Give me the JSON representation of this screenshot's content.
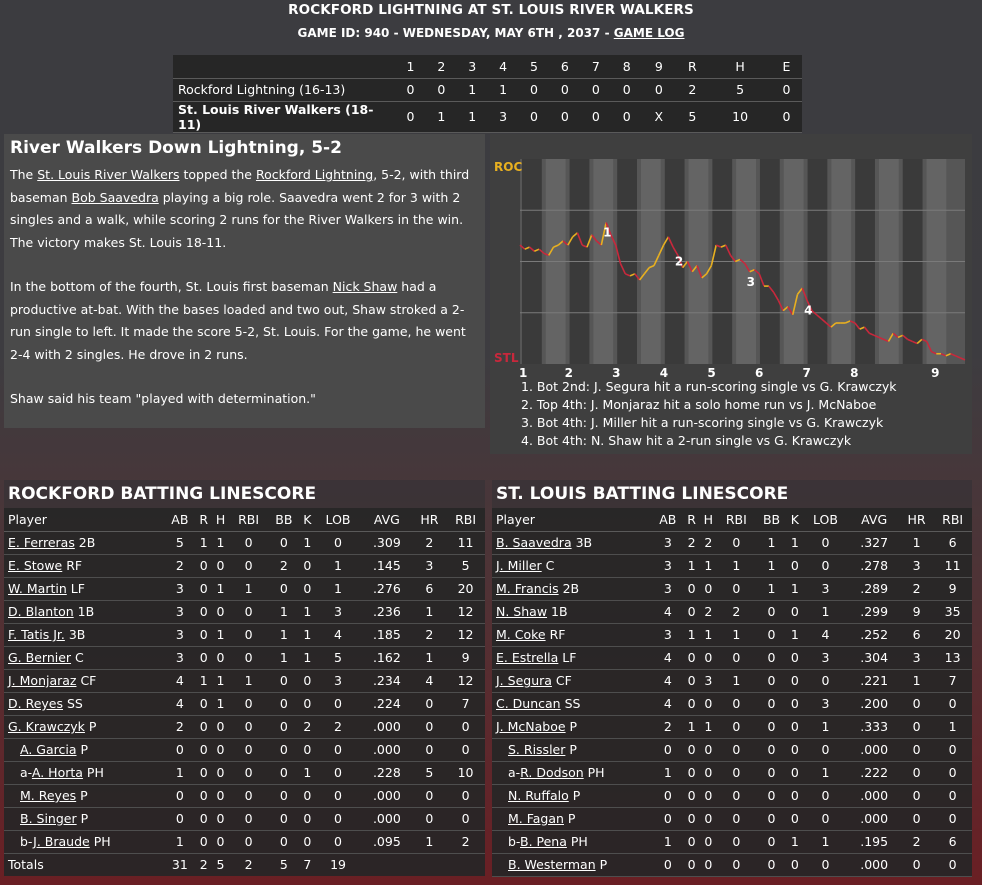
{
  "header": {
    "title": "ROCKFORD LIGHTNING AT ST. LOUIS RIVER WALKERS",
    "subtitle": "GAME ID: 940 - WEDNESDAY, MAY 6TH , 2037 -",
    "game_log_link": "GAME LOG"
  },
  "linescore": {
    "columns": [
      "1",
      "2",
      "3",
      "4",
      "5",
      "6",
      "7",
      "8",
      "9",
      "R",
      "H",
      "E"
    ],
    "teams": [
      {
        "name": "Rockford Lightning (16-13)",
        "cells": [
          "0",
          "0",
          "1",
          "1",
          "0",
          "0",
          "0",
          "0",
          "0",
          "2",
          "5",
          "0"
        ]
      },
      {
        "name": "St. Louis River Walkers (18-11)",
        "cells": [
          "0",
          "1",
          "1",
          "3",
          "0",
          "0",
          "0",
          "0",
          "X",
          "5",
          "10",
          "0"
        ]
      }
    ]
  },
  "story": {
    "headline": "River Walkers Down Lightning, 5-2",
    "p1": [
      "The ",
      {
        "link": "St. Louis River Walkers"
      },
      " topped the ",
      {
        "link": "Rockford Lightning"
      },
      ", 5-2, with third baseman ",
      {
        "link": "Bob Saavedra"
      },
      " playing a big role. Saavedra went 2 for 3 with 2 singles and a walk, while scoring 2 runs for the River Walkers in the win. The victory makes St. Louis 18-11."
    ],
    "p2": [
      "In the bottom of the fourth, St. Louis first baseman ",
      {
        "link": "Nick Shaw"
      },
      " had a productive at-bat. With the bases loaded and two out, Shaw stroked a 2-run single to left. It made the score 5-2, St. Louis. For the game, he went 2-4 with 2 singles. He drove in 2 runs."
    ],
    "p3": [
      "Shaw said his team \"played with determination.\""
    ]
  },
  "win_prob": {
    "top_label": "ROC",
    "bottom_label": "STL",
    "inning_labels": [
      "1",
      "2",
      "3",
      "4",
      "5",
      "6",
      "7",
      "8",
      "9"
    ],
    "markers": [
      "1",
      "2",
      "3",
      "4"
    ],
    "colors": {
      "up": "#e8b020",
      "down": "#c8283c"
    },
    "series": [
      0.58,
      0.56,
      0.57,
      0.55,
      0.56,
      0.54,
      0.53,
      0.57,
      0.58,
      0.6,
      0.58,
      0.62,
      0.64,
      0.58,
      0.57,
      0.63,
      0.6,
      0.58,
      0.69,
      0.63,
      0.58,
      0.49,
      0.44,
      0.43,
      0.44,
      0.41,
      0.44,
      0.47,
      0.48,
      0.53,
      0.58,
      0.62,
      0.57,
      0.53,
      0.47,
      0.5,
      0.45,
      0.48,
      0.42,
      0.44,
      0.48,
      0.58,
      0.57,
      0.58,
      0.53,
      0.5,
      0.51,
      0.49,
      0.45,
      0.46,
      0.44,
      0.38,
      0.38,
      0.35,
      0.31,
      0.26,
      0.28,
      0.24,
      0.34,
      0.37,
      0.31,
      0.26,
      0.24,
      0.22,
      0.2,
      0.18,
      0.2,
      0.2,
      0.2,
      0.21,
      0.2,
      0.17,
      0.18,
      0.15,
      0.14,
      0.13,
      0.12,
      0.11,
      0.15,
      0.13,
      0.14,
      0.12,
      0.11,
      0.1,
      0.12,
      0.11,
      0.06,
      0.05,
      0.05,
      0.04,
      0.05,
      0.04,
      0.03,
      0.02
    ],
    "notes": [
      "1. Bot 2nd: J. Segura hit a run-scoring single vs G. Krawczyk",
      "2. Top 4th: J. Monjaraz hit a solo home run vs J. McNaboe",
      "3. Bot 4th: J. Miller hit a run-scoring single vs G. Krawczyk",
      "4. Bot 4th: N. Shaw hit a 2-run single vs G. Krawczyk"
    ]
  },
  "rockford": {
    "title": "ROCKFORD BATTING LINESCORE",
    "columns": [
      "Player",
      "AB",
      "R",
      "H",
      "RBI",
      "BB",
      "K",
      "LOB",
      "AVG",
      "HR",
      "RBI"
    ],
    "rows": [
      {
        "prefix": "",
        "name": "E. Ferreras",
        "pos": "2B",
        "stats": [
          "5",
          "1",
          "1",
          "0",
          "0",
          "1",
          "0",
          ".309",
          "2",
          "11"
        ]
      },
      {
        "prefix": "",
        "name": "E. Stowe",
        "pos": "RF",
        "stats": [
          "2",
          "0",
          "0",
          "0",
          "2",
          "0",
          "1",
          ".145",
          "3",
          "5"
        ]
      },
      {
        "prefix": "",
        "name": "W. Martin",
        "pos": "LF",
        "stats": [
          "3",
          "0",
          "1",
          "1",
          "0",
          "0",
          "1",
          ".276",
          "6",
          "20"
        ]
      },
      {
        "prefix": "",
        "name": "D. Blanton",
        "pos": "1B",
        "stats": [
          "3",
          "0",
          "0",
          "0",
          "1",
          "1",
          "3",
          ".236",
          "1",
          "12"
        ]
      },
      {
        "prefix": "",
        "name": "F. Tatis Jr.",
        "pos": "3B",
        "stats": [
          "3",
          "0",
          "1",
          "0",
          "1",
          "1",
          "4",
          ".185",
          "2",
          "12"
        ]
      },
      {
        "prefix": "",
        "name": "G. Bernier",
        "pos": "C",
        "stats": [
          "3",
          "0",
          "0",
          "0",
          "1",
          "1",
          "5",
          ".162",
          "1",
          "9"
        ]
      },
      {
        "prefix": "",
        "name": "J. Monjaraz",
        "pos": "CF",
        "stats": [
          "4",
          "1",
          "1",
          "1",
          "0",
          "0",
          "3",
          ".234",
          "4",
          "12"
        ]
      },
      {
        "prefix": "",
        "name": "D. Reyes",
        "pos": "SS",
        "stats": [
          "4",
          "0",
          "1",
          "0",
          "0",
          "0",
          "0",
          ".224",
          "0",
          "7"
        ]
      },
      {
        "prefix": "",
        "name": "G. Krawczyk",
        "pos": "P",
        "stats": [
          "2",
          "0",
          "0",
          "0",
          "0",
          "2",
          "2",
          ".000",
          "0",
          "0"
        ]
      },
      {
        "prefix": "",
        "name": "A. Garcia",
        "pos": "P",
        "sub": true,
        "stats": [
          "0",
          "0",
          "0",
          "0",
          "0",
          "0",
          "0",
          ".000",
          "0",
          "0"
        ]
      },
      {
        "prefix": "a-",
        "name": "A. Horta",
        "pos": "PH",
        "sub": true,
        "stats": [
          "1",
          "0",
          "0",
          "0",
          "0",
          "1",
          "0",
          ".228",
          "5",
          "10"
        ]
      },
      {
        "prefix": "",
        "name": "M. Reyes",
        "pos": "P",
        "sub": true,
        "stats": [
          "0",
          "0",
          "0",
          "0",
          "0",
          "0",
          "0",
          ".000",
          "0",
          "0"
        ]
      },
      {
        "prefix": "",
        "name": "B. Singer",
        "pos": "P",
        "sub": true,
        "stats": [
          "0",
          "0",
          "0",
          "0",
          "0",
          "0",
          "0",
          ".000",
          "0",
          "0"
        ]
      },
      {
        "prefix": "b-",
        "name": "J. Braude",
        "pos": "PH",
        "sub": true,
        "stats": [
          "1",
          "0",
          "0",
          "0",
          "0",
          "0",
          "0",
          ".095",
          "1",
          "2"
        ]
      }
    ],
    "totals": {
      "label": "Totals",
      "stats": [
        "31",
        "2",
        "5",
        "2",
        "5",
        "7",
        "19",
        "",
        "",
        ""
      ]
    }
  },
  "stlouis": {
    "title": "ST. LOUIS BATTING LINESCORE",
    "columns": [
      "Player",
      "AB",
      "R",
      "H",
      "RBI",
      "BB",
      "K",
      "LOB",
      "AVG",
      "HR",
      "RBI"
    ],
    "rows": [
      {
        "prefix": "",
        "name": "B. Saavedra",
        "pos": "3B",
        "stats": [
          "3",
          "2",
          "2",
          "0",
          "1",
          "1",
          "0",
          ".327",
          "1",
          "6"
        ]
      },
      {
        "prefix": "",
        "name": "J. Miller",
        "pos": "C",
        "stats": [
          "3",
          "1",
          "1",
          "1",
          "1",
          "0",
          "0",
          ".278",
          "3",
          "11"
        ]
      },
      {
        "prefix": "",
        "name": "M. Francis",
        "pos": "2B",
        "stats": [
          "3",
          "0",
          "0",
          "0",
          "1",
          "1",
          "3",
          ".289",
          "2",
          "9"
        ]
      },
      {
        "prefix": "",
        "name": "N. Shaw",
        "pos": "1B",
        "stats": [
          "4",
          "0",
          "2",
          "2",
          "0",
          "0",
          "1",
          ".299",
          "9",
          "35"
        ]
      },
      {
        "prefix": "",
        "name": "M. Coke",
        "pos": "RF",
        "stats": [
          "3",
          "1",
          "1",
          "1",
          "0",
          "1",
          "4",
          ".252",
          "6",
          "20"
        ]
      },
      {
        "prefix": "",
        "name": "E. Estrella",
        "pos": "LF",
        "stats": [
          "4",
          "0",
          "0",
          "0",
          "0",
          "0",
          "3",
          ".304",
          "3",
          "13"
        ]
      },
      {
        "prefix": "",
        "name": "J. Segura",
        "pos": "CF",
        "stats": [
          "4",
          "0",
          "3",
          "1",
          "0",
          "0",
          "0",
          ".221",
          "1",
          "7"
        ]
      },
      {
        "prefix": "",
        "name": "C. Duncan",
        "pos": "SS",
        "stats": [
          "4",
          "0",
          "0",
          "0",
          "0",
          "0",
          "3",
          ".200",
          "0",
          "0"
        ]
      },
      {
        "prefix": "",
        "name": "J. McNaboe",
        "pos": "P",
        "stats": [
          "2",
          "1",
          "1",
          "0",
          "0",
          "0",
          "1",
          ".333",
          "0",
          "1"
        ]
      },
      {
        "prefix": "",
        "name": "S. Rissler",
        "pos": "P",
        "sub": true,
        "stats": [
          "0",
          "0",
          "0",
          "0",
          "0",
          "0",
          "0",
          ".000",
          "0",
          "0"
        ]
      },
      {
        "prefix": "a-",
        "name": "R. Dodson",
        "pos": "PH",
        "sub": true,
        "stats": [
          "1",
          "0",
          "0",
          "0",
          "0",
          "0",
          "1",
          ".222",
          "0",
          "0"
        ]
      },
      {
        "prefix": "",
        "name": "N. Ruffalo",
        "pos": "P",
        "sub": true,
        "stats": [
          "0",
          "0",
          "0",
          "0",
          "0",
          "0",
          "0",
          ".000",
          "0",
          "0"
        ]
      },
      {
        "prefix": "",
        "name": "M. Fagan",
        "pos": "P",
        "sub": true,
        "stats": [
          "0",
          "0",
          "0",
          "0",
          "0",
          "0",
          "0",
          ".000",
          "0",
          "0"
        ]
      },
      {
        "prefix": "b-",
        "name": "B. Pena",
        "pos": "PH",
        "sub": true,
        "stats": [
          "1",
          "0",
          "0",
          "0",
          "0",
          "1",
          "1",
          ".195",
          "2",
          "6"
        ]
      },
      {
        "prefix": "",
        "name": "B. Westerman",
        "pos": "P",
        "sub": true,
        "stats": [
          "0",
          "0",
          "0",
          "0",
          "0",
          "0",
          "0",
          ".000",
          "0",
          "0"
        ]
      }
    ]
  }
}
